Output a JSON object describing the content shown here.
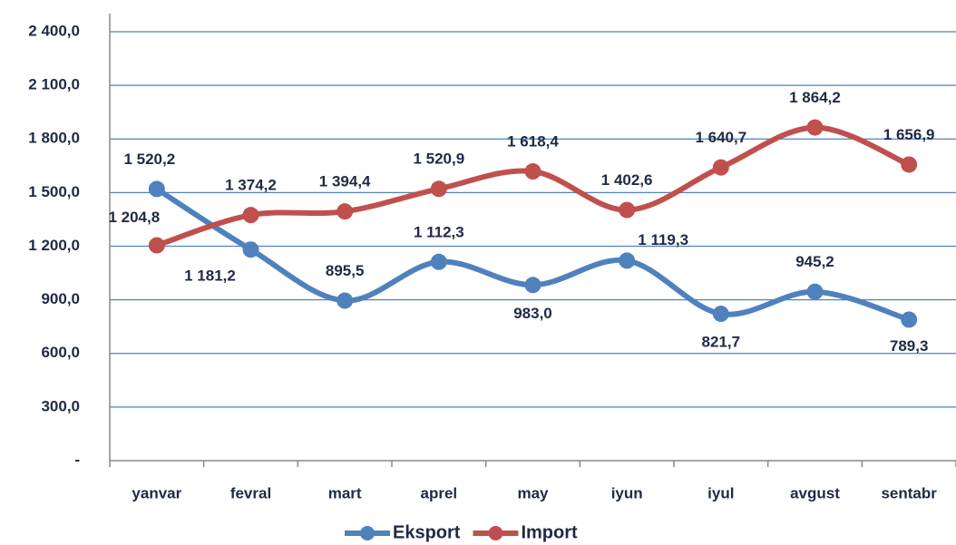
{
  "chart_data": {
    "type": "line",
    "categories": [
      "yanvar",
      "fevral",
      "mart",
      "aprel",
      "may",
      "iyun",
      "iyul",
      "avgust",
      "sentabr"
    ],
    "series": [
      {
        "name": "Eksport",
        "color": "#4f81bd",
        "values": [
          1520.2,
          1181.2,
          895.5,
          1112.3,
          983.0,
          1119.3,
          821.7,
          945.2,
          789.3
        ],
        "value_labels": [
          "1 520,2",
          "1 181,2",
          "895,5",
          "1 112,3",
          "983,0",
          "1 119,3",
          "821,7",
          "945,2",
          "789,3"
        ]
      },
      {
        "name": "Import",
        "color": "#c0504d",
        "values": [
          1204.8,
          1374.2,
          1394.4,
          1520.9,
          1618.4,
          1402.6,
          1640.7,
          1864.2,
          1656.9
        ],
        "value_labels": [
          "1 204,8",
          "1 374,2",
          "1 394,4",
          "1 520,9",
          "1 618,4",
          "1 402,6",
          "1 640,7",
          "1 864,2",
          "1 656,9"
        ]
      }
    ],
    "ylim": [
      0,
      2400
    ],
    "yticks": [
      {
        "value": 0,
        "label": "-"
      },
      {
        "value": 300,
        "label": "300,0"
      },
      {
        "value": 600,
        "label": "600,0"
      },
      {
        "value": 900,
        "label": "900,0"
      },
      {
        "value": 1200,
        "label": "1 200,0"
      },
      {
        "value": 1500,
        "label": "1 500,0"
      },
      {
        "value": 1800,
        "label": "1 800,0"
      },
      {
        "value": 2100,
        "label": "2 100,0"
      },
      {
        "value": 2400,
        "label": "2 400,0"
      }
    ],
    "grid": true,
    "legend": "bottom"
  }
}
